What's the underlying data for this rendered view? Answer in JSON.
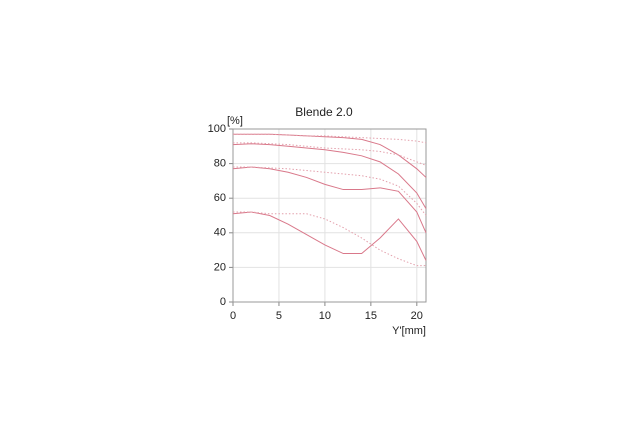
{
  "chart_data": {
    "type": "line",
    "title": "Blende 2.0",
    "ylabel": "[%]",
    "xlabel": "Y'[mm]",
    "x": [
      0,
      2,
      4,
      6,
      8,
      10,
      12,
      14,
      16,
      18,
      20,
      21
    ],
    "series": [
      {
        "color": "#d9788a",
        "style": "solid",
        "values": [
          97,
          97,
          97,
          96.5,
          96,
          95.5,
          95,
          94,
          91,
          85,
          77,
          72
        ]
      },
      {
        "color": "#e3a0ac",
        "style": "dotted",
        "values": [
          97,
          97,
          97,
          96.5,
          96,
          96,
          95.5,
          95,
          94.5,
          94,
          93,
          92
        ]
      },
      {
        "color": "#d9788a",
        "style": "solid",
        "values": [
          91,
          91.5,
          91,
          90,
          89,
          88,
          86.5,
          84.5,
          81,
          74,
          63,
          54
        ]
      },
      {
        "color": "#e3a0ac",
        "style": "dotted",
        "values": [
          92,
          92,
          91.5,
          91,
          90,
          89,
          88.5,
          88,
          87,
          85,
          81,
          79
        ]
      },
      {
        "color": "#d9788a",
        "style": "solid",
        "values": [
          77,
          78,
          77,
          75,
          72,
          68,
          65,
          65,
          66,
          64,
          52,
          40
        ]
      },
      {
        "color": "#e3a0ac",
        "style": "dotted",
        "values": [
          78,
          78,
          77.5,
          77,
          76,
          75,
          74,
          73,
          71,
          67,
          57,
          50
        ]
      },
      {
        "color": "#d9788a",
        "style": "solid",
        "values": [
          51,
          52,
          50,
          45,
          39,
          33,
          28,
          28,
          37,
          48,
          35,
          24
        ]
      },
      {
        "color": "#e3a0ac",
        "style": "dotted",
        "values": [
          52,
          52,
          51,
          51,
          51,
          48,
          43,
          37,
          30,
          25,
          21,
          21
        ]
      }
    ],
    "xlim": [
      0,
      21
    ],
    "ylim": [
      0,
      100
    ],
    "xticks": [
      0,
      5,
      10,
      15,
      20
    ],
    "yticks": [
      0,
      20,
      40,
      60,
      80,
      100
    ],
    "grid": true
  }
}
